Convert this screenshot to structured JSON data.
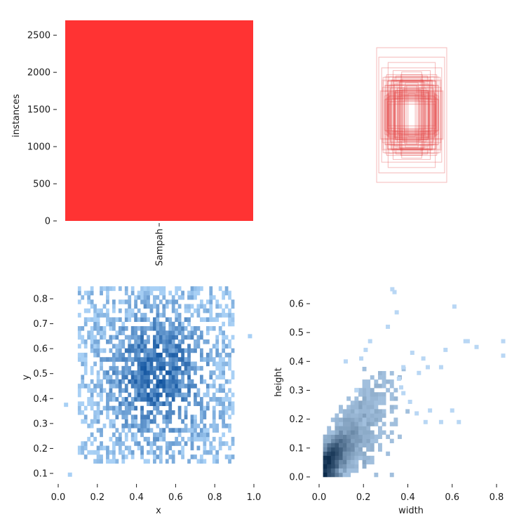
{
  "chart_data": [
    {
      "type": "bar",
      "categories": [
        "Sampah"
      ],
      "values": [
        2700
      ],
      "xlabel": "",
      "ylabel": "instances",
      "ylim": [
        0,
        2700
      ],
      "yticks": [
        0,
        500,
        1000,
        1500,
        2000,
        2500
      ],
      "color": "#ff3333"
    },
    {
      "type": "scatter",
      "description_kind": "overlay of bounding boxes centered at the same point",
      "boxes": [
        {
          "w": 0.1,
          "h": 0.32,
          "hex": "#e23a3a"
        },
        {
          "w": 0.18,
          "h": 0.48,
          "hex": "#e23a3a"
        },
        {
          "w": 0.58,
          "h": 0.52,
          "hex": "#e23a3a"
        },
        {
          "w": 0.62,
          "h": 0.28,
          "hex": "#e23a3a"
        },
        {
          "w": 0.3,
          "h": 0.6,
          "hex": "#e23a3a"
        },
        {
          "w": 0.4,
          "h": 0.4,
          "hex": "#e23a3a"
        },
        {
          "w": 0.74,
          "h": 0.44,
          "hex": "#e23a3a"
        },
        {
          "w": 0.84,
          "h": 0.7,
          "hex": "#e23a3a"
        },
        {
          "w": 0.52,
          "h": 0.66,
          "hex": "#e23a3a"
        },
        {
          "w": 0.92,
          "h": 0.86,
          "hex": "#e23a3a"
        },
        {
          "w": 0.98,
          "h": 1.0,
          "hex": "#e23a3a"
        },
        {
          "w": 0.66,
          "h": 0.78,
          "hex": "#e23a3a"
        },
        {
          "w": 0.46,
          "h": 0.36,
          "hex": "#e23a3a"
        },
        {
          "w": 0.22,
          "h": 0.22,
          "hex": "#e23a3a"
        },
        {
          "w": 0.56,
          "h": 0.24,
          "hex": "#e23a3a"
        },
        {
          "w": 0.34,
          "h": 0.5,
          "hex": "#e23a3a"
        },
        {
          "w": 0.26,
          "h": 0.38,
          "hex": "#e23a3a"
        },
        {
          "w": 0.44,
          "h": 0.58,
          "hex": "#e23a3a"
        },
        {
          "w": 0.7,
          "h": 0.6,
          "hex": "#e23a3a"
        },
        {
          "w": 0.36,
          "h": 0.3,
          "hex": "#e23a3a"
        },
        {
          "w": 0.6,
          "h": 0.4,
          "hex": "#e23a3a"
        },
        {
          "w": 0.48,
          "h": 0.46,
          "hex": "#e23a3a"
        },
        {
          "w": 0.14,
          "h": 0.44,
          "hex": "#e23a3a"
        },
        {
          "w": 0.8,
          "h": 0.56,
          "hex": "#e23a3a"
        },
        {
          "w": 0.28,
          "h": 0.64,
          "hex": "#e23a3a"
        },
        {
          "w": 0.64,
          "h": 0.34,
          "hex": "#e23a3a"
        }
      ]
    },
    {
      "type": "heatmap",
      "xlabel": "x",
      "ylabel": "y",
      "xlim": [
        0,
        1.0
      ],
      "ylim": [
        0.07,
        0.86
      ],
      "xticks": [
        "0.0",
        "0.2",
        "0.4",
        "0.6",
        "0.8",
        "1.0"
      ],
      "yticks": [
        "0.1",
        "0.2",
        "0.3",
        "0.4",
        "0.5",
        "0.6",
        "0.7",
        "0.8"
      ],
      "grid_bins": [
        50,
        40
      ],
      "color_low": "#a8d0f5",
      "color_high": "#0b4f9c",
      "outliers": [
        [
          0.06,
          0.095
        ],
        [
          0.98,
          0.65
        ],
        [
          0.04,
          0.375
        ]
      ]
    },
    {
      "type": "heatmap",
      "xlabel": "width",
      "ylabel": "height",
      "xlim": [
        0,
        0.85
      ],
      "ylim": [
        0,
        0.66
      ],
      "xticks": [
        "0.0",
        "0.2",
        "0.4",
        "0.6",
        "0.8"
      ],
      "yticks": [
        "0.0",
        "0.1",
        "0.2",
        "0.3",
        "0.4",
        "0.5",
        "0.6"
      ],
      "grid_bins": [
        48,
        45
      ],
      "color_low": "#b9d7f4",
      "color_high": "#0b2a4a",
      "outliers": [
        [
          0.33,
          0.65
        ],
        [
          0.34,
          0.64
        ],
        [
          0.61,
          0.59
        ],
        [
          0.35,
          0.57
        ],
        [
          0.31,
          0.52
        ],
        [
          0.66,
          0.47
        ],
        [
          0.67,
          0.47
        ],
        [
          0.83,
          0.47
        ],
        [
          0.71,
          0.45
        ],
        [
          0.57,
          0.44
        ],
        [
          0.83,
          0.42
        ],
        [
          0.42,
          0.43
        ],
        [
          0.23,
          0.47
        ],
        [
          0.21,
          0.44
        ],
        [
          0.49,
          0.38
        ],
        [
          0.55,
          0.38
        ],
        [
          0.47,
          0.41
        ],
        [
          0.38,
          0.38
        ],
        [
          0.19,
          0.41
        ],
        [
          0.45,
          0.36
        ],
        [
          0.36,
          0.34
        ],
        [
          0.38,
          0.29
        ],
        [
          0.5,
          0.23
        ],
        [
          0.44,
          0.22
        ],
        [
          0.6,
          0.23
        ],
        [
          0.63,
          0.19
        ],
        [
          0.55,
          0.19
        ],
        [
          0.48,
          0.19
        ],
        [
          0.12,
          0.4
        ],
        [
          0.17,
          0.3
        ],
        [
          0.37,
          0.31
        ],
        [
          0.41,
          0.26
        ]
      ]
    }
  ]
}
